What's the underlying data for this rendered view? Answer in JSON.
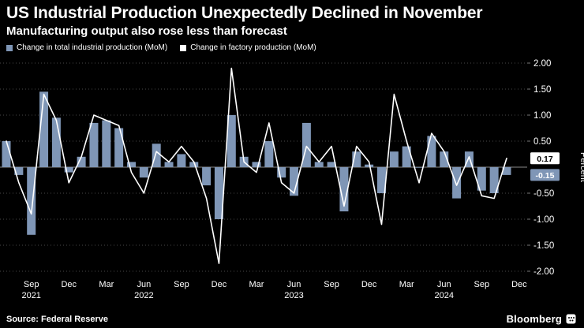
{
  "header": {
    "title": "US Industrial Production Unexpectedly Declined in November",
    "subtitle": "Manufacturing output also rose less than forecast"
  },
  "legend": [
    {
      "label": "Change in total industrial production (MoM)",
      "color": "#7f96b6"
    },
    {
      "label": "Change in factory production (MoM)",
      "color": "#ffffff"
    }
  ],
  "footer": {
    "source": "Source: Federal Reserve",
    "brand": "Bloomberg"
  },
  "chart_data": {
    "type": "bar+line",
    "title": "US Industrial Production Unexpectedly Declined in November",
    "ylabel": "Percent",
    "ylim": [
      -2.0,
      2.0
    ],
    "grid": "dotted horizontal",
    "legend_position": "top-left",
    "months": [
      "Jul 2021",
      "Aug 2021",
      "Sep 2021",
      "Oct 2021",
      "Nov 2021",
      "Dec 2021",
      "Jan 2022",
      "Feb 2022",
      "Mar 2022",
      "Apr 2022",
      "May 2022",
      "Jun 2022",
      "Jul 2022",
      "Aug 2022",
      "Sep 2022",
      "Oct 2022",
      "Nov 2022",
      "Dec 2022",
      "Jan 2023",
      "Feb 2023",
      "Mar 2023",
      "Apr 2023",
      "May 2023",
      "Jun 2023",
      "Jul 2023",
      "Aug 2023",
      "Sep 2023",
      "Oct 2023",
      "Nov 2023",
      "Dec 2023",
      "Jan 2024",
      "Feb 2024",
      "Mar 2024",
      "Apr 2024",
      "May 2024",
      "Jun 2024",
      "Jul 2024",
      "Aug 2024",
      "Sep 2024",
      "Oct 2024",
      "Nov 2024"
    ],
    "series": [
      {
        "name": "Change in total industrial production (MoM)",
        "type": "bar",
        "color": "#7f96b6",
        "values": [
          0.5,
          -0.15,
          -1.3,
          1.45,
          0.95,
          -0.1,
          0.2,
          0.85,
          0.9,
          0.75,
          0.1,
          -0.2,
          0.45,
          0.1,
          0.25,
          0.1,
          -0.35,
          -1.0,
          1.0,
          0.2,
          0.1,
          0.5,
          -0.2,
          -0.55,
          0.85,
          0.1,
          0.1,
          -0.85,
          0.3,
          0.05,
          -0.5,
          0.3,
          0.4,
          0.0,
          0.6,
          0.3,
          -0.6,
          0.3,
          -0.45,
          -0.5,
          -0.15
        ]
      },
      {
        "name": "Change in factory production (MoM)",
        "type": "line",
        "color": "#ffffff",
        "values": [
          0.5,
          -0.3,
          -0.9,
          1.4,
          0.9,
          -0.3,
          0.2,
          1.0,
          0.9,
          0.8,
          -0.1,
          -0.5,
          0.3,
          0.1,
          0.4,
          0.1,
          -0.6,
          -1.85,
          1.9,
          0.1,
          -0.1,
          0.85,
          -0.3,
          -0.5,
          0.4,
          0.1,
          0.4,
          -0.75,
          0.4,
          0.1,
          -1.1,
          1.4,
          0.5,
          -0.3,
          0.65,
          0.3,
          -0.35,
          0.2,
          -0.55,
          -0.6,
          0.17
        ]
      }
    ],
    "x_ticks": [
      {
        "i": 2,
        "label": "Sep"
      },
      {
        "i": 5,
        "label": "Dec"
      },
      {
        "i": 8,
        "label": "Mar"
      },
      {
        "i": 11,
        "label": "Jun"
      },
      {
        "i": 14,
        "label": "Sep"
      },
      {
        "i": 17,
        "label": "Dec"
      },
      {
        "i": 20,
        "label": "Mar"
      },
      {
        "i": 23,
        "label": "Jun"
      },
      {
        "i": 26,
        "label": "Sep"
      },
      {
        "i": 29,
        "label": "Dec"
      },
      {
        "i": 32,
        "label": "Mar"
      },
      {
        "i": 35,
        "label": "Jun"
      },
      {
        "i": 38,
        "label": "Sep"
      },
      {
        "i": 41,
        "label": "Dec"
      }
    ],
    "year_labels": [
      {
        "i": 2,
        "label": "2021"
      },
      {
        "i": 11,
        "label": "2022"
      },
      {
        "i": 23,
        "label": "2023"
      },
      {
        "i": 35,
        "label": "2024"
      }
    ],
    "y_ticks": [
      {
        "v": 2.0,
        "label": "2.00"
      },
      {
        "v": 1.5,
        "label": "1.50"
      },
      {
        "v": 1.0,
        "label": "1.00"
      },
      {
        "v": 0.5,
        "label": "0.50"
      },
      {
        "v": -0.5,
        "label": "-0.50"
      },
      {
        "v": -1.0,
        "label": "-1.00"
      },
      {
        "v": -1.5,
        "label": "-1.50"
      },
      {
        "v": -2.0,
        "label": "-2.00"
      }
    ],
    "badges": [
      {
        "v": 0.17,
        "label": "0.17",
        "bg": "#ffffff",
        "fg": "#000000"
      },
      {
        "v": -0.15,
        "label": "-0.15",
        "bg": "#7f96b6",
        "fg": "#ffffff"
      }
    ],
    "grid_color": "#474747",
    "zero_color": "#8a8a8a",
    "text_color": "#ffffff"
  }
}
